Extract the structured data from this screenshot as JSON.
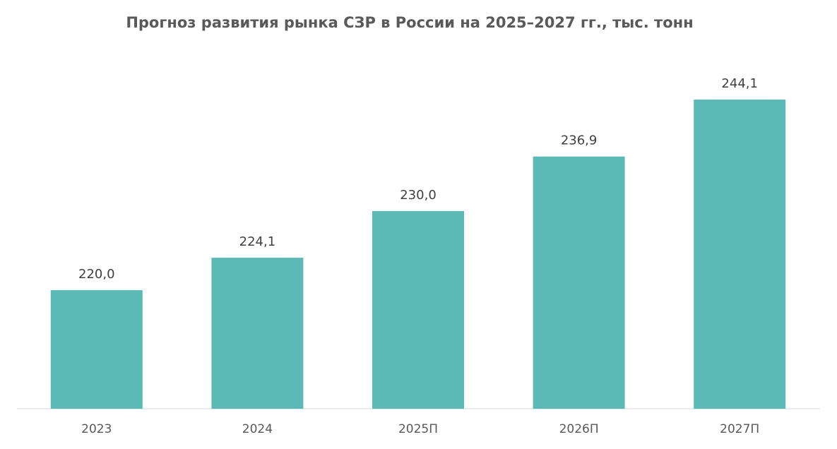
{
  "chart_data": {
    "type": "bar",
    "title": "Прогноз развития рынка СЗР в России на 2025–2027 гг., тыс. тонн",
    "categories": [
      "2023",
      "2024",
      "2025П",
      "2026П",
      "2027П"
    ],
    "values": [
      220.0,
      224.1,
      230.0,
      236.9,
      244.1
    ],
    "value_labels": [
      "220,0",
      "224,1",
      "230,0",
      "236,9",
      "244,1"
    ],
    "color": "#5bbab5",
    "ylim": [
      205,
      250
    ]
  }
}
